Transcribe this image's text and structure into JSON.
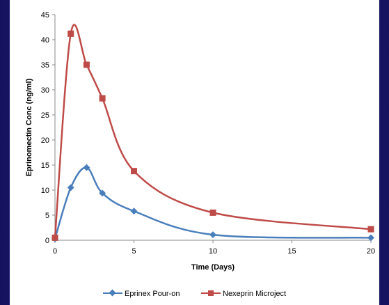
{
  "chart_data": {
    "type": "line",
    "xlabel": "Time (Days)",
    "ylabel": "Eprinomectin Conc (ng/ml)",
    "xlim": [
      0,
      20
    ],
    "ylim": [
      0,
      45
    ],
    "x_ticks": [
      0,
      5,
      10,
      15,
      20
    ],
    "y_ticks": [
      0,
      5,
      10,
      15,
      20,
      25,
      30,
      35,
      40,
      45
    ],
    "grid": false,
    "legend_position": "bottom",
    "series": [
      {
        "name": "Eprinex Pour-on",
        "color": "#4a7ebb",
        "marker": "diamond",
        "x": [
          0,
          1,
          2,
          3,
          5,
          10,
          20
        ],
        "y": [
          0.3,
          10.5,
          14.5,
          9.4,
          5.8,
          1.1,
          0.5
        ]
      },
      {
        "name": "Nexeprin Microject",
        "color": "#be4b48",
        "marker": "square",
        "x": [
          0,
          1,
          2,
          3,
          5,
          10,
          20
        ],
        "y": [
          0.5,
          41.2,
          35.0,
          28.3,
          13.8,
          5.5,
          2.2
        ]
      }
    ]
  }
}
